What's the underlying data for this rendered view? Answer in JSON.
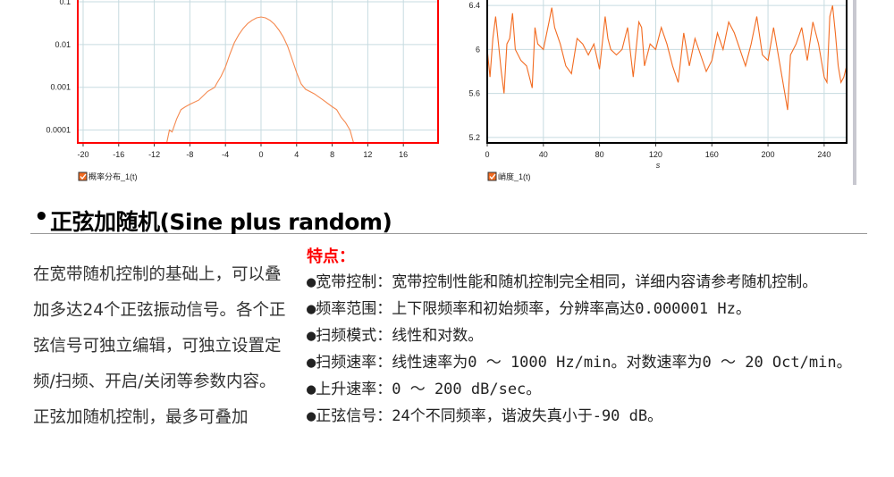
{
  "chart_data": [
    {
      "type": "line",
      "legend": "概率分布_1(t)",
      "legend_placement": "bottom-left",
      "y_scale": "log",
      "xlim": [
        -20.6,
        19.9
      ],
      "ylim": [
        5e-05,
        0.11
      ],
      "x_ticks": [
        "-20",
        "-16",
        "-12",
        "-8",
        "-4",
        "0",
        "4",
        "8",
        "12",
        "16"
      ],
      "y_ticks": [
        "0.1",
        "0.01",
        "0.001",
        "0.0001"
      ],
      "grid": true,
      "border_color": "#ff0000",
      "line_color": "#f5894f",
      "x": [
        -10.6,
        -10.3,
        -10,
        -9.5,
        -9,
        -8.5,
        -8,
        -7,
        -6,
        -5.2,
        -5,
        -4.5,
        -4,
        -3.5,
        -3,
        -2.5,
        -2,
        -1.5,
        -1,
        -0.5,
        0,
        0.5,
        1,
        1.5,
        2,
        2.5,
        3,
        3.5,
        4,
        4.5,
        5,
        6,
        7,
        8,
        8.5,
        9,
        9.5,
        10,
        10.4
      ],
      "y": [
        5e-05,
        0.0001,
        9e-05,
        0.00018,
        0.0003,
        0.00035,
        0.0004,
        0.0005,
        0.0008,
        0.001,
        0.0012,
        0.0018,
        0.003,
        0.006,
        0.011,
        0.017,
        0.024,
        0.031,
        0.037,
        0.042,
        0.044,
        0.042,
        0.037,
        0.03,
        0.022,
        0.015,
        0.009,
        0.0045,
        0.0022,
        0.0012,
        0.0009,
        0.0007,
        0.0005,
        0.00035,
        0.0003,
        0.0002,
        0.00015,
        0.0001,
        5e-05
      ]
    },
    {
      "type": "line",
      "legend": "峭度_1(t)",
      "legend_placement": "bottom-left",
      "xlabel": "s",
      "xlim": [
        0,
        256
      ],
      "ylim": [
        5.15,
        6.45
      ],
      "x_ticks": [
        "0",
        "40",
        "80",
        "120",
        "160",
        "200",
        "240"
      ],
      "y_ticks": [
        "6.4",
        "6",
        "5.6",
        "5.2"
      ],
      "grid": true,
      "border_color": "#000000",
      "line_color": "#f26b21",
      "x": [
        0,
        2,
        4,
        6,
        8,
        10,
        12,
        14,
        16,
        18,
        20,
        24,
        28,
        32,
        34,
        36,
        40,
        44,
        46,
        48,
        52,
        56,
        60,
        64,
        68,
        72,
        76,
        80,
        84,
        86,
        88,
        92,
        96,
        100,
        104,
        108,
        110,
        112,
        116,
        120,
        124,
        128,
        132,
        136,
        140,
        144,
        148,
        152,
        156,
        160,
        164,
        168,
        172,
        176,
        180,
        184,
        188,
        192,
        196,
        200,
        204,
        208,
        212,
        214,
        216,
        220,
        224,
        228,
        232,
        236,
        240,
        242,
        244,
        246,
        248,
        250,
        252,
        254,
        256
      ],
      "y": [
        6.0,
        5.75,
        6.1,
        6.3,
        6.05,
        5.8,
        5.6,
        6.05,
        6.1,
        6.33,
        6.0,
        5.9,
        5.85,
        5.65,
        6.2,
        6.05,
        6.0,
        6.25,
        6.38,
        6.2,
        6.05,
        5.85,
        5.78,
        6.1,
        6.05,
        5.95,
        6.05,
        5.82,
        6.3,
        6.1,
        6.0,
        5.95,
        6.0,
        6.2,
        5.75,
        6.25,
        6.2,
        5.85,
        6.05,
        6.0,
        6.2,
        6.05,
        5.85,
        5.7,
        6.15,
        5.85,
        6.1,
        5.95,
        5.8,
        5.9,
        6.15,
        6.0,
        6.25,
        6.15,
        6.0,
        5.85,
        6.05,
        6.3,
        5.95,
        5.9,
        6.2,
        5.9,
        5.6,
        5.45,
        5.95,
        6.05,
        6.2,
        5.9,
        6.25,
        6.05,
        5.75,
        5.7,
        6.3,
        6.4,
        6.15,
        5.85,
        5.7,
        5.75,
        5.85
      ]
    }
  ],
  "section": {
    "bullet": "•",
    "title": "正弦加随机(Sine plus random)"
  },
  "description": [
    "在宽带随机控制的基础上，可以叠加多达24个正弦振动信号。各个正弦信号可独立编辑，可独立设置定频/扫频、开启/关闭等参数内容。",
    "正弦加随机控制，最多可叠加"
  ],
  "features": {
    "title": "特点：",
    "items": [
      "●宽带控制：宽带控制性能和随机控制完全相同，详细内容请参考随机控制。",
      "●频率范围：上下限频率和初始频率，分辨率高达0.000001 Hz。",
      "●扫频模式：线性和对数。",
      "●扫频速率：线性速率为0 ～ 1000 Hz/min。对数速率为0 ～ 20 Oct/min。",
      "●上升速率：0 ～ 200 dB/sec。",
      "●正弦信号：24个不同频率，谐波失真小于-90 dB。"
    ]
  }
}
